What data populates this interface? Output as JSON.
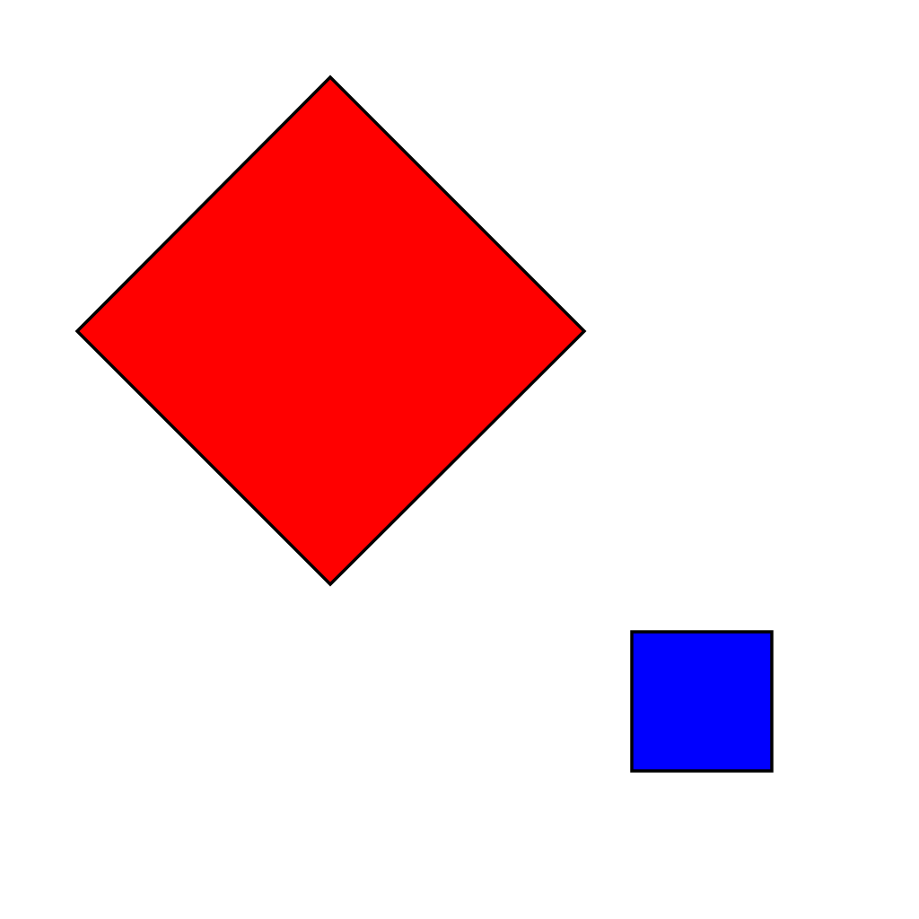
{
  "canvas": {
    "background": "#ffffff"
  },
  "shapes": {
    "diamond": {
      "fill": "#ff0000",
      "stroke": "#000000"
    },
    "square": {
      "fill": "#0000ff",
      "stroke": "#000000"
    }
  }
}
